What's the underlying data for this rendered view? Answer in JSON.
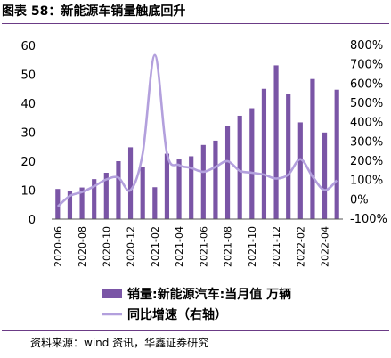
{
  "header": {
    "title": "图表 58：新能源车销量触底回升"
  },
  "footer": {
    "source": "资料来源：wind 资讯，华鑫证券研究"
  },
  "chart_data": {
    "type": "bar",
    "title": "图表 58：新能源车销量触底回升",
    "x": [
      "2020-06",
      "2020-07",
      "2020-08",
      "2020-09",
      "2020-10",
      "2020-11",
      "2020-12",
      "2021-01",
      "2021-02",
      "2021-03",
      "2021-04",
      "2021-05",
      "2021-06",
      "2021-07",
      "2021-08",
      "2021-09",
      "2021-10",
      "2021-11",
      "2021-12",
      "2022-01",
      "2022-02",
      "2022-03",
      "2022-04",
      "2022-05"
    ],
    "x_tick_labels": [
      "2020-06",
      "2020-08",
      "2020-10",
      "2020-12",
      "2021-02",
      "2021-04",
      "2021-06",
      "2021-08",
      "2021-10",
      "2021-12",
      "2022-02",
      "2022-04"
    ],
    "series": [
      {
        "name": "销量:新能源汽车:当月值 万辆",
        "type": "bar",
        "axis": "left",
        "color": "#7a55a6",
        "values": [
          10.4,
          9.8,
          10.9,
          13.8,
          16.0,
          20.0,
          24.8,
          17.9,
          11.0,
          22.6,
          20.6,
          21.7,
          25.6,
          27.1,
          32.1,
          35.7,
          38.3,
          45.0,
          53.1,
          43.1,
          33.4,
          48.4,
          29.9,
          44.7
        ]
      },
      {
        "name": "同比增速（右轴）",
        "type": "line",
        "axis": "right",
        "color": "#b3a0dd",
        "values": [
          -35,
          20,
          40,
          70,
          105,
          115,
          50,
          240,
          750,
          240,
          180,
          165,
          145,
          170,
          200,
          150,
          140,
          130,
          110,
          130,
          210,
          120,
          50,
          100
        ]
      }
    ],
    "y_left": {
      "range": [
        0,
        60
      ],
      "ticks": [
        "0",
        "10",
        "20",
        "30",
        "40",
        "50",
        "60"
      ]
    },
    "y_right": {
      "range": [
        -100,
        800
      ],
      "ticks": [
        "-100%",
        "0%",
        "100%",
        "200%",
        "300%",
        "400%",
        "500%",
        "600%",
        "700%",
        "800%"
      ]
    },
    "grid": false,
    "legend": "bottom"
  },
  "colors": {
    "bar": "#7a55a6",
    "line": "#b3a0dd",
    "rule": "#6b3b86"
  }
}
